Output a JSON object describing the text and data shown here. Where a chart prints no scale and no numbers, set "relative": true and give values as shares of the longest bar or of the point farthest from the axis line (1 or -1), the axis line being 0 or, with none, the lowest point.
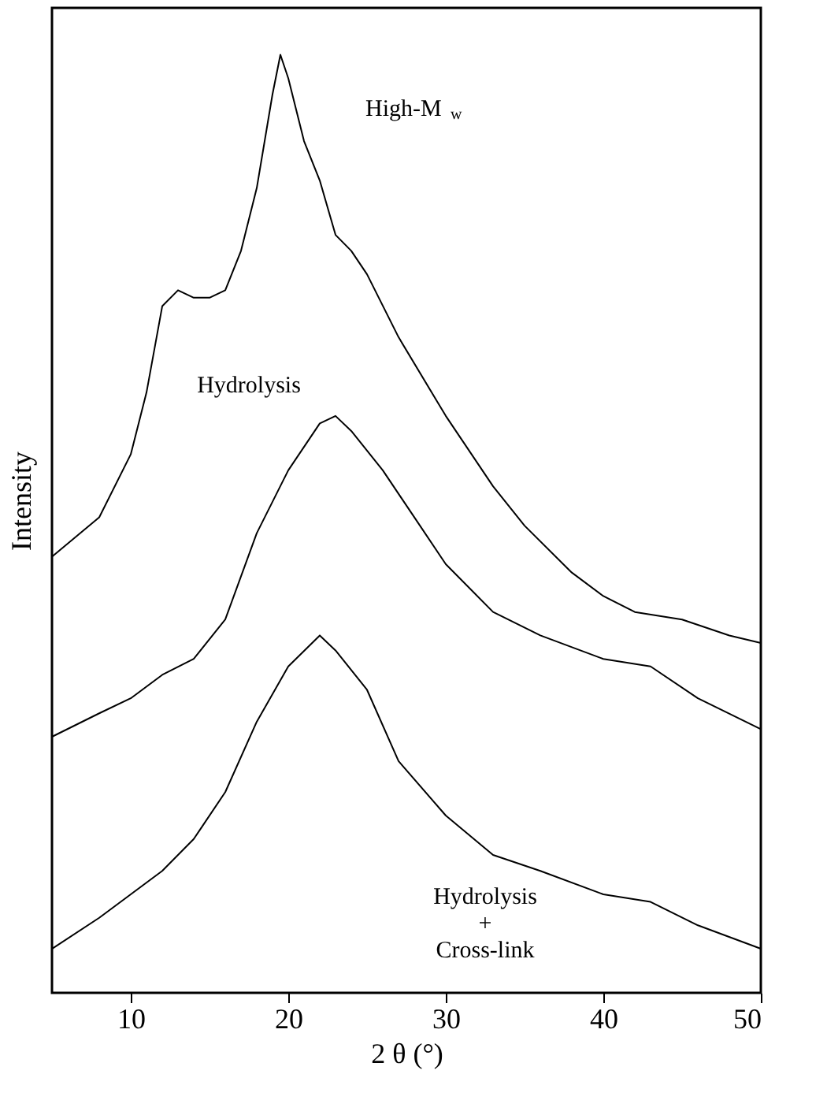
{
  "chart_data": {
    "type": "line",
    "relative": true,
    "xlabel": "2 θ (°)",
    "ylabel": "Intensity",
    "xlim": [
      5,
      50
    ],
    "xticks": [
      10,
      20,
      30,
      40,
      50
    ],
    "tick_labels": "x",
    "grid": false,
    "marker": "none",
    "line_style": "solid",
    "series": [
      {
        "name": "High-M$_{w}$",
        "color": "#000000",
        "x": [
          5,
          8,
          10,
          11,
          12,
          13,
          14,
          15,
          16,
          17,
          18,
          19,
          19.5,
          20,
          21,
          22,
          23,
          24,
          25,
          27,
          30,
          33,
          35,
          38,
          40,
          42,
          45,
          48,
          50
        ],
        "values": [
          0.465,
          0.507,
          0.574,
          0.64,
          0.732,
          0.749,
          0.741,
          0.741,
          0.749,
          0.791,
          0.858,
          0.958,
          1.0,
          0.975,
          0.908,
          0.866,
          0.808,
          0.791,
          0.766,
          0.699,
          0.615,
          0.54,
          0.498,
          0.448,
          0.423,
          0.406,
          0.398,
          0.381,
          0.373
        ]
      },
      {
        "name": "Hydrolysis",
        "color": "#000000",
        "x": [
          5,
          8,
          10,
          12,
          14,
          16,
          18,
          20,
          22,
          23,
          24,
          26,
          28,
          30,
          33,
          36,
          40,
          43,
          46,
          50
        ],
        "values": [
          0.273,
          0.298,
          0.314,
          0.339,
          0.356,
          0.398,
          0.49,
          0.557,
          0.607,
          0.615,
          0.599,
          0.557,
          0.507,
          0.457,
          0.406,
          0.381,
          0.356,
          0.348,
          0.314,
          0.281
        ]
      },
      {
        "name": "Hydrolysis\n+\nCross-link",
        "color": "#000000",
        "x": [
          5,
          8,
          10,
          12,
          14,
          16,
          18,
          20,
          22,
          23,
          25,
          27,
          30,
          33,
          36,
          40,
          43,
          46,
          50
        ],
        "values": [
          0.047,
          0.08,
          0.105,
          0.13,
          0.164,
          0.214,
          0.289,
          0.348,
          0.381,
          0.365,
          0.323,
          0.247,
          0.189,
          0.147,
          0.13,
          0.105,
          0.097,
          0.072,
          0.047
        ]
      }
    ]
  }
}
